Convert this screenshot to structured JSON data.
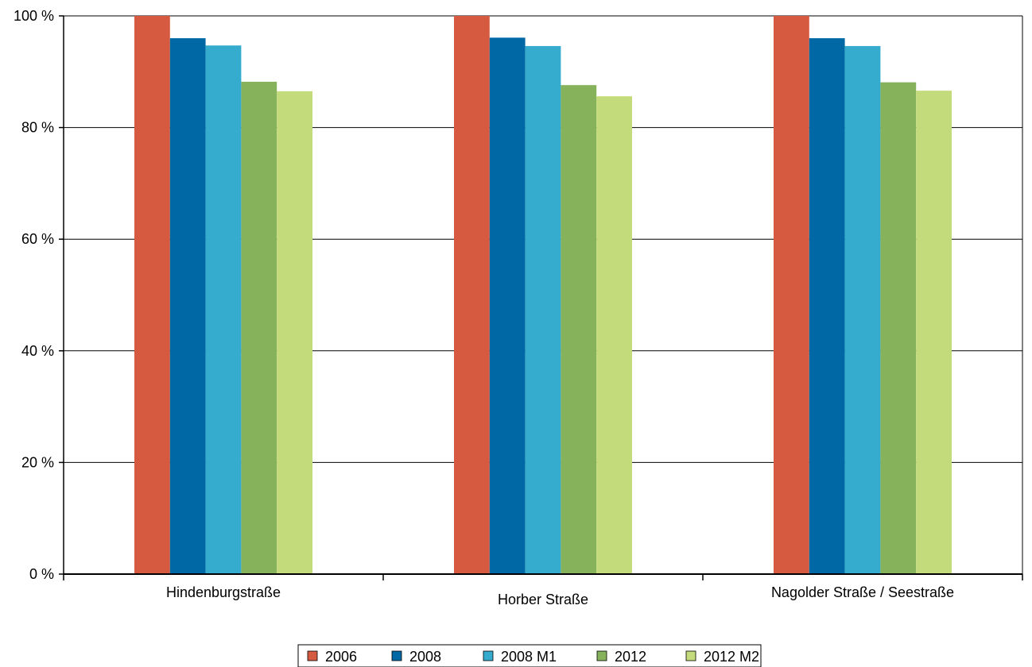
{
  "chart_data": {
    "type": "bar",
    "categories": [
      "Hindenburgstraße",
      "Horber Straße",
      "Nagolder Straße / Seestraße"
    ],
    "series": [
      {
        "name": "2006",
        "color": "#d65a40",
        "values": [
          100,
          100,
          100
        ]
      },
      {
        "name": "2008",
        "color": "#0068a4",
        "values": [
          96,
          96.1,
          96
        ]
      },
      {
        "name": "2008 M1",
        "color": "#35acce",
        "values": [
          94.7,
          94.6,
          94.6
        ]
      },
      {
        "name": "2012",
        "color": "#86b25c",
        "values": [
          88.2,
          87.6,
          88.1
        ]
      },
      {
        "name": "2012 M2",
        "color": "#c4db7c",
        "values": [
          86.5,
          85.6,
          86.6
        ]
      }
    ],
    "y_ticks": [
      "0 %",
      "20 %",
      "40 %",
      "60 %",
      "80 %",
      "100 %"
    ],
    "ylim": [
      0,
      100
    ],
    "grid": true,
    "legend_position": "bottom"
  }
}
